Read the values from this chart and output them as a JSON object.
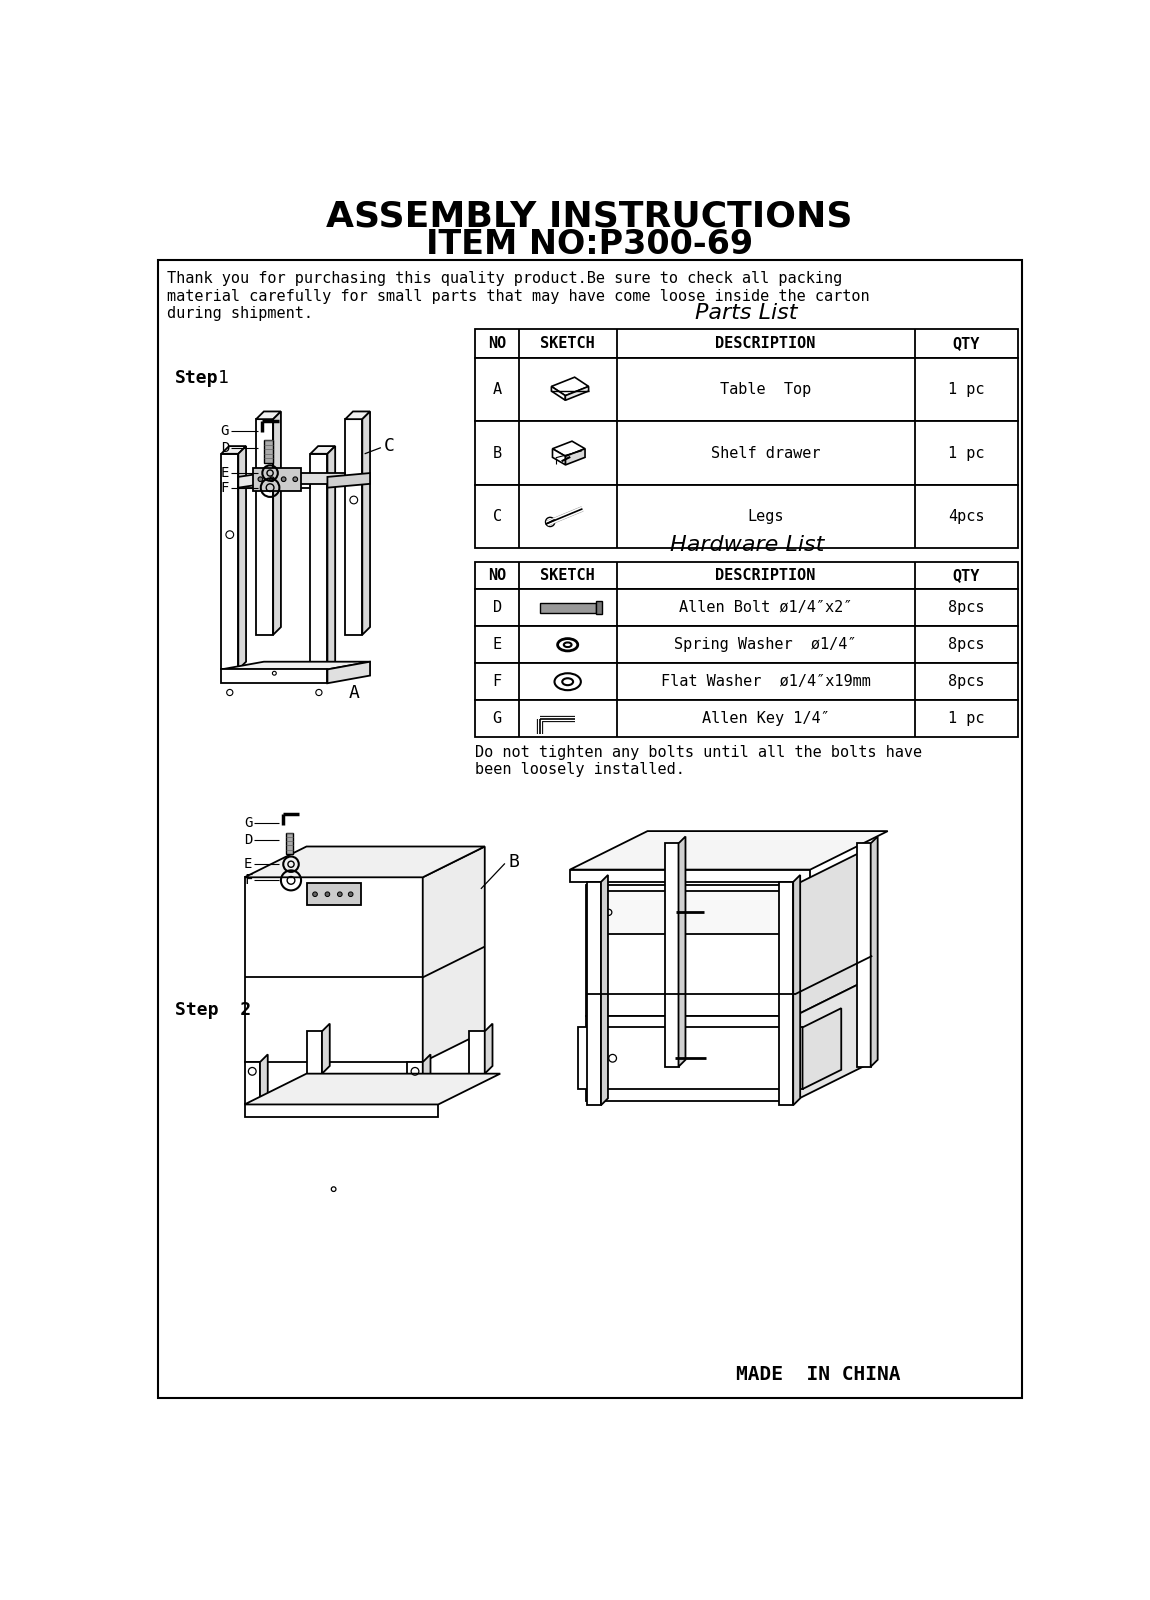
{
  "title_line1": "ASSEMBLY INSTRUCTIONS",
  "title_line2": "ITEM NO:P300-69",
  "intro_text": "Thank you for purchasing this quality product.Be sure to check all packing\nmaterial carefully for small parts that may have come loose inside the carton\nduring shipment.",
  "parts_list_title": "Parts List",
  "hardware_list_title": "Hardware List",
  "parts_headers": [
    "NO",
    "SKETCH",
    "DESCRIPTION",
    "QTY"
  ],
  "parts_rows": [
    [
      "A",
      "",
      "Table  Top",
      "1 pc"
    ],
    [
      "B",
      "",
      "Shelf drawer",
      "1 pc"
    ],
    [
      "C",
      "",
      "Legs",
      "4pcs"
    ]
  ],
  "hardware_headers": [
    "NO",
    "SKETCH",
    "DESCRIPTION",
    "QTY"
  ],
  "hardware_rows": [
    [
      "D",
      "",
      "Allen Bolt ø1/4″x2″",
      "8pcs"
    ],
    [
      "E",
      "",
      "Spring Washer  ø1/4″",
      "8pcs"
    ],
    [
      "F",
      "",
      "Flat Washer  ø1/4″x19mm",
      "8pcs"
    ],
    [
      "G",
      "",
      "Allen Key 1/4″",
      "1 pc"
    ]
  ],
  "note_text": "Do not tighten any bolts until all the bolts have\nbeen loosely installed.",
  "step1_label": "Step",
  "step1_num": "1",
  "step2_label": "Step  2",
  "made_in_china": "MADE  IN CHINA",
  "bg_color": "#ffffff",
  "fig_width": 11.5,
  "fig_height": 16.0
}
